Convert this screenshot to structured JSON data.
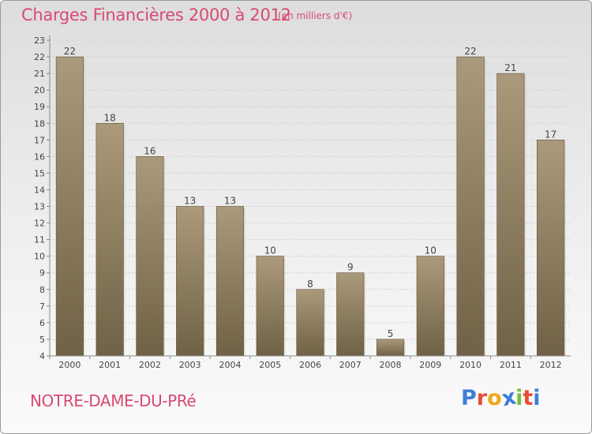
{
  "header": {
    "title": "Charges Financières 2000 à 2012",
    "subtitle": "(en milliers d'€)"
  },
  "footer": {
    "commune": "NOTRE-DAME-DU-PRé",
    "brand_letters": [
      "P",
      "r",
      "o",
      "x",
      "i",
      "t",
      "i"
    ]
  },
  "colors": {
    "accent": "#d84a72",
    "bar_top": "#a99878",
    "bar_bottom": "#6e5e42",
    "brand": [
      "#3f7fd4",
      "#e84d3a",
      "#f2a51a",
      "#3f7fd4",
      "#7bbd3a",
      "#e84d3a",
      "#3f7fd4"
    ]
  },
  "chart_data": {
    "type": "bar",
    "categories": [
      "2000",
      "2001",
      "2002",
      "2003",
      "2004",
      "2005",
      "2006",
      "2007",
      "2008",
      "2009",
      "2010",
      "2011",
      "2012"
    ],
    "values": [
      22,
      18,
      16,
      13,
      13,
      10,
      8,
      9,
      5,
      10,
      22,
      21,
      17
    ],
    "data_labels": [
      "22",
      "18",
      "16",
      "13",
      "13",
      "10",
      "8",
      "9",
      "5",
      "10",
      "22",
      "21",
      "17"
    ],
    "ylim": [
      4,
      23
    ],
    "yticks": [
      "4",
      "5",
      "6",
      "7",
      "8",
      "9",
      "10",
      "11",
      "12",
      "13",
      "14",
      "15",
      "16",
      "17",
      "18",
      "19",
      "20",
      "21",
      "22",
      "23"
    ],
    "grid": true,
    "legend": "none"
  }
}
